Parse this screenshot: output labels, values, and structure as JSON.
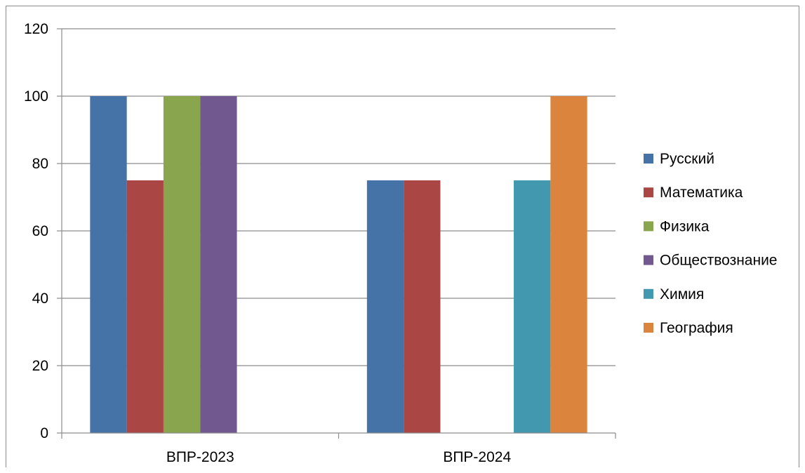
{
  "chart_data": {
    "type": "bar",
    "title": "",
    "xlabel": "",
    "ylabel": "",
    "categories": [
      "ВПР-2023",
      "ВПР-2024"
    ],
    "ylim": [
      0,
      120
    ],
    "yticks": [
      0,
      20,
      40,
      60,
      80,
      100,
      120
    ],
    "grid": true,
    "legend_position": "right",
    "series": [
      {
        "name": "Русский",
        "color": "#4572A7",
        "values": [
          100,
          75
        ]
      },
      {
        "name": "Математика",
        "color": "#AA4643",
        "values": [
          75,
          75
        ]
      },
      {
        "name": "Физика",
        "color": "#89A54E",
        "values": [
          100,
          null
        ]
      },
      {
        "name": "Обществознание",
        "color": "#71588F",
        "values": [
          100,
          null
        ]
      },
      {
        "name": "Химия",
        "color": "#4198AF",
        "values": [
          null,
          75
        ]
      },
      {
        "name": "География",
        "color": "#DB843D",
        "values": [
          null,
          100
        ]
      }
    ]
  }
}
